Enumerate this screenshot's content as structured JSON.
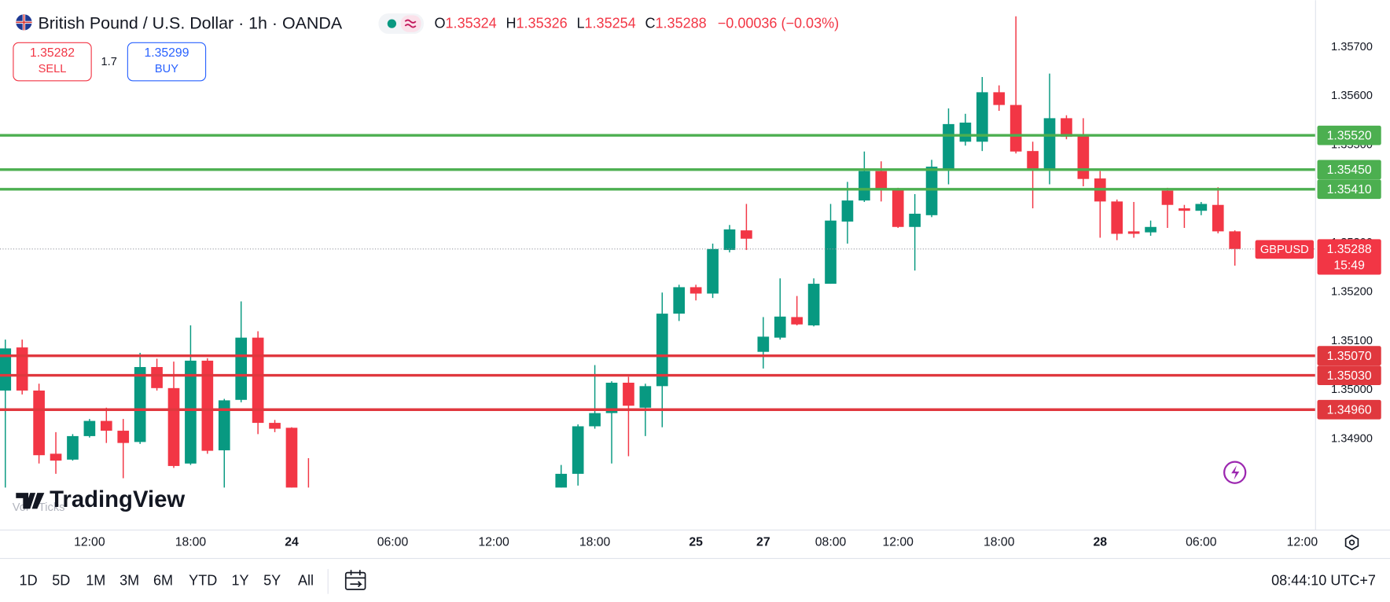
{
  "header": {
    "symbol": "British Pound / U.S. Dollar · 1h · OANDA",
    "ohlc_labels": [
      "O",
      "H",
      "L",
      "C"
    ],
    "change": "−0.00036 (−0.03%)"
  },
  "trade": {
    "sell_price": "1.35282",
    "sell": "SELL",
    "spread": "1.7",
    "buy_price": "1.35299",
    "buy": "BUY"
  },
  "chart_data": {
    "type": "candlestick",
    "categories": [
      null,
      null,
      null,
      null,
      null,
      "12:00",
      null,
      null,
      null,
      null,
      null,
      "18:00",
      null,
      null,
      null,
      null,
      null,
      "24",
      null,
      null,
      null,
      null,
      null,
      "06:00",
      null,
      null,
      null,
      null,
      null,
      "12:00",
      null,
      null,
      null,
      null,
      null,
      "18:00",
      null,
      null,
      null,
      null,
      null,
      "25",
      null,
      null,
      null,
      "27",
      null,
      null,
      null,
      "08:00",
      null,
      null,
      null,
      "12:00",
      null,
      null,
      null,
      null,
      null,
      "18:00",
      null,
      null,
      null,
      null,
      null,
      "28",
      null,
      null,
      null,
      null,
      null,
      "06:00",
      null,
      null,
      null,
      null,
      null,
      "12:00"
    ],
    "open": [
      1.34999,
      1.35087,
      1.34999,
      1.3487,
      1.34858,
      1.34906,
      1.34937,
      1.34917,
      1.34894,
      1.35047,
      1.35004,
      1.3485,
      1.3506,
      1.34877,
      1.3498,
      1.35107,
      1.34933,
      1.34923,
      1.3478,
      null,
      null,
      null,
      null,
      null,
      null,
      null,
      null,
      null,
      null,
      null,
      null,
      null,
      null,
      1.3478,
      1.34829,
      1.34926,
      1.34953,
      1.35015,
      1.34964,
      1.35008,
      1.35156,
      1.3521,
      1.35197,
      1.35286,
      1.35326,
      1.35078,
      1.35107,
      1.35149,
      1.35132,
      1.35217,
      1.35344,
      1.35387,
      1.35447,
      1.35409,
      1.35333,
      1.35357,
      1.35452,
      1.35507,
      1.35507,
      1.35608,
      1.35582,
      1.35488,
      1.3545,
      1.35555,
      1.35519,
      1.35432,
      1.35385,
      1.35324,
      1.35322,
      1.35407,
      1.35371,
      1.35366,
      1.35378,
      1.35324,
      null,
      null,
      null,
      null
    ],
    "high": [
      1.35103,
      1.35103,
      1.35013,
      1.34914,
      1.3491,
      1.34941,
      1.34964,
      1.34941,
      1.35076,
      1.35064,
      1.35058,
      1.35132,
      1.35065,
      1.34982,
      1.35181,
      1.3512,
      1.34939,
      1.34924,
      1.34861,
      null,
      null,
      null,
      null,
      null,
      null,
      null,
      null,
      null,
      null,
      null,
      null,
      null,
      null,
      1.34847,
      1.3493,
      1.35051,
      1.35018,
      1.35027,
      1.35013,
      1.35199,
      1.35215,
      1.35215,
      1.35299,
      1.35337,
      1.3538,
      1.35149,
      1.35228,
      1.35192,
      1.35228,
      1.3538,
      1.35425,
      1.35487,
      1.35467,
      1.35413,
      1.354,
      1.3547,
      1.35575,
      1.35564,
      1.35639,
      1.35622,
      1.35763,
      1.35507,
      1.35646,
      1.35561,
      1.35555,
      1.35447,
      1.35389,
      1.35384,
      1.35346,
      1.35413,
      1.35378,
      1.35384,
      1.35414,
      1.35326,
      null,
      null,
      null,
      null
    ],
    "low": [
      1.3478,
      1.34991,
      1.3485,
      1.34829,
      1.34856,
      1.34903,
      1.34892,
      1.3482,
      1.3489,
      1.34999,
      1.34841,
      1.34847,
      1.3487,
      1.3479,
      1.34975,
      1.3491,
      1.34914,
      1.3476,
      1.3474,
      null,
      null,
      null,
      null,
      null,
      null,
      null,
      null,
      null,
      null,
      null,
      null,
      null,
      null,
      1.3477,
      1.34805,
      1.34921,
      1.3485,
      1.34865,
      1.34906,
      1.34924,
      1.35141,
      1.35183,
      1.35188,
      1.35281,
      1.35286,
      1.35044,
      1.35103,
      1.35132,
      1.3513,
      1.35217,
      1.35299,
      1.35384,
      1.35385,
      1.35331,
      1.35244,
      1.35353,
      1.3542,
      1.35499,
      1.35488,
      1.3557,
      1.35483,
      1.35371,
      1.3542,
      1.35512,
      1.35416,
      1.35311,
      1.35306,
      1.35311,
      1.35315,
      1.35331,
      1.35331,
      1.35357,
      1.3532,
      1.35254,
      null,
      null,
      null,
      null
    ],
    "close": [
      1.35085,
      1.34999,
      1.34867,
      1.34856,
      1.34906,
      1.34937,
      1.34917,
      1.34892,
      1.35047,
      1.35004,
      1.34845,
      1.3506,
      1.34876,
      1.34979,
      1.35107,
      1.34933,
      1.34921,
      1.3478,
      1.3477,
      null,
      null,
      null,
      null,
      null,
      null,
      null,
      null,
      null,
      null,
      null,
      null,
      null,
      null,
      1.34829,
      1.34926,
      1.34953,
      1.35015,
      1.34968,
      1.35008,
      1.35156,
      1.3521,
      1.35197,
      1.35288,
      1.35328,
      1.35309,
      1.35109,
      1.3515,
      1.35134,
      1.35217,
      1.35346,
      1.35387,
      1.35447,
      1.35409,
      1.35333,
      1.3536,
      1.35456,
      1.35543,
      1.35546,
      1.35608,
      1.35582,
      1.35487,
      1.3545,
      1.35555,
      1.35517,
      1.35431,
      1.35385,
      1.35319,
      1.35319,
      1.35333,
      1.35378,
      1.35366,
      1.3538,
      1.35324,
      1.35288,
      null,
      null,
      null,
      null
    ],
    "up_color": "#089981",
    "down_color": "#f23645",
    "ylim": [
      1.34801,
      1.35796
    ],
    "yticks": [
      {
        "value": 1.349,
        "label": "1.34900"
      },
      {
        "value": 1.35,
        "label": "1.35000"
      },
      {
        "value": 1.351,
        "label": "1.35100"
      },
      {
        "value": 1.352,
        "label": "1.35200"
      },
      {
        "value": 1.353,
        "label": "1.35300"
      },
      {
        "value": 1.355,
        "label": "1.35500"
      },
      {
        "value": 1.356,
        "label": "1.35600"
      },
      {
        "value": 1.357,
        "label": "1.35700"
      }
    ],
    "grid": false,
    "levels": [
      {
        "value": 1.3552,
        "label": "1.35520",
        "color": "#4caf50"
      },
      {
        "value": 1.3545,
        "label": "1.35450",
        "color": "#4caf50"
      },
      {
        "value": 1.3541,
        "label": "1.35410",
        "color": "#4caf50"
      },
      {
        "value": 1.3507,
        "label": "1.35070",
        "color": "#e0383e"
      },
      {
        "value": 1.3503,
        "label": "1.35030",
        "color": "#e0383e"
      },
      {
        "value": 1.3496,
        "label": "1.34960",
        "color": "#e0383e"
      }
    ],
    "last_price": {
      "symbol": "GBPUSD",
      "countdown": "15:49"
    }
  },
  "watermark": {
    "logo": "TradingView",
    "volume_legend": "Vol · Ticks"
  },
  "toolbar": {
    "ranges": [
      "1D",
      "5D",
      "1M",
      "3M",
      "6M",
      "YTD",
      "1Y",
      "5Y",
      "All"
    ],
    "clock": "08:44:10 UTC+7"
  }
}
